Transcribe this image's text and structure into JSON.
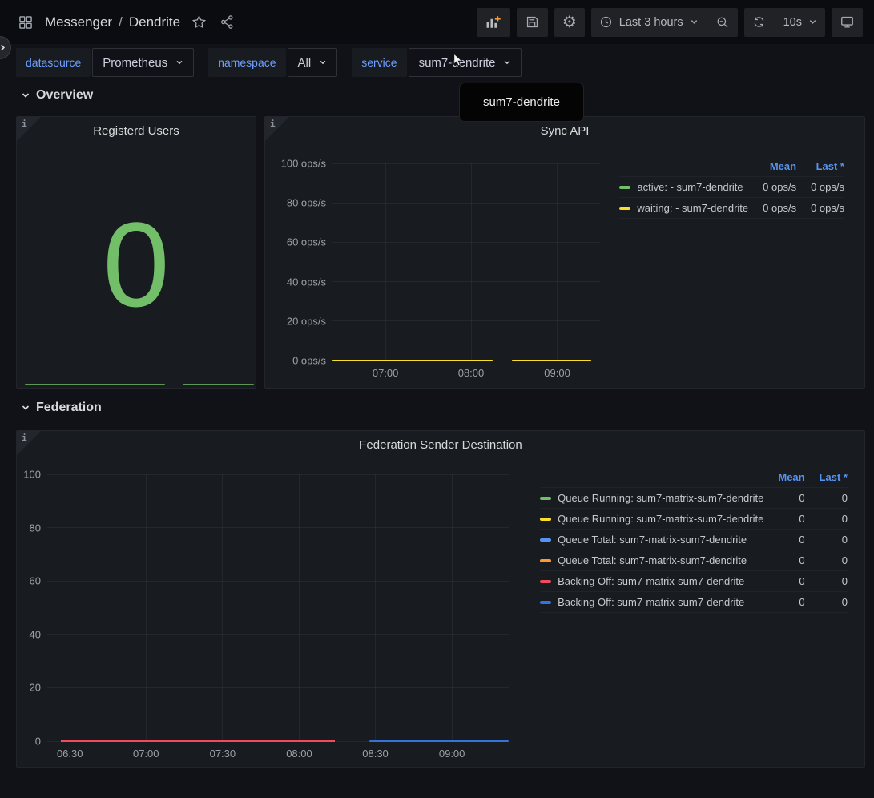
{
  "header": {
    "breadcrumb": {
      "app": "Messenger",
      "separator": "/",
      "page": "Dendrite"
    },
    "toolbar": {
      "time_range_label": "Last 3 hours",
      "refresh_interval": "10s"
    },
    "icons": [
      "dashboards-grid",
      "star",
      "share-alt",
      "add-panel-bar-chart-plus",
      "save-floppy",
      "settings-gear",
      "clock",
      "chevron-down",
      "zoom-out-magnifier-minus",
      "refresh-cycle",
      "kiosk-monitor"
    ]
  },
  "sidebar_handle": {
    "chevron": "expand-sidebar"
  },
  "variables": [
    {
      "label": "datasource",
      "value": "Prometheus"
    },
    {
      "label": "namespace",
      "value": "All"
    },
    {
      "label": "service",
      "value": "sum7-dendrite"
    }
  ],
  "tooltip": {
    "text": "sum7-dendrite"
  },
  "sections": [
    {
      "label": "Overview"
    },
    {
      "label": "Federation"
    }
  ],
  "chart_data": [
    {
      "type": "stat",
      "title": "Registerd Users",
      "value": 0,
      "display_value": "0",
      "color": "#73BF69",
      "sparkline": {
        "value": 0,
        "color": "#73BF69",
        "segments": [
          [
            0.033,
            0.62
          ],
          [
            0.693,
            0.993
          ]
        ]
      }
    },
    {
      "type": "line",
      "title": "Sync API",
      "xlabel": "",
      "ylabel": "",
      "unit": "ops/s",
      "ylim": [
        0,
        100
      ],
      "grid": true,
      "legend_position": "right-table",
      "y_ticks": [
        {
          "value": 100,
          "label": "100 ops/s"
        },
        {
          "value": 80,
          "label": "80 ops/s"
        },
        {
          "value": 60,
          "label": "60 ops/s"
        },
        {
          "value": 40,
          "label": "40 ops/s"
        },
        {
          "value": 20,
          "label": "20 ops/s"
        },
        {
          "value": 0,
          "label": "0 ops/s"
        }
      ],
      "x_ticks": [
        {
          "label": "07:00",
          "pos": 0.198
        },
        {
          "label": "08:00",
          "pos": 0.518
        },
        {
          "label": "09:00",
          "pos": 0.84
        }
      ],
      "series": [
        {
          "name": "active: - sum7-dendrite",
          "color": "#73BF69",
          "value": 0,
          "segments": [
            [
              0.0,
              0.599
            ],
            [
              0.67,
              0.967
            ]
          ]
        },
        {
          "name": "waiting: - sum7-dendrite",
          "color": "#FADE2A",
          "value": 0,
          "segments": [
            [
              0.0,
              0.599
            ],
            [
              0.67,
              0.967
            ]
          ]
        }
      ],
      "legend": {
        "columns": [
          "Mean",
          "Last *"
        ],
        "rows": [
          {
            "name": "active: - sum7-dendrite",
            "color": "#73BF69",
            "mean": "0 ops/s",
            "last": "0 ops/s"
          },
          {
            "name": "waiting: - sum7-dendrite",
            "color": "#FADE2A",
            "mean": "0 ops/s",
            "last": "0 ops/s"
          }
        ]
      }
    },
    {
      "type": "line",
      "title": "Federation Sender Destination",
      "xlabel": "",
      "ylabel": "",
      "unit": "",
      "ylim": [
        0,
        100
      ],
      "grid": true,
      "legend_position": "right-table",
      "y_ticks": [
        {
          "value": 100,
          "label": "100"
        },
        {
          "value": 80,
          "label": "80"
        },
        {
          "value": 60,
          "label": "60"
        },
        {
          "value": 40,
          "label": "40"
        },
        {
          "value": 20,
          "label": "20"
        },
        {
          "value": 0,
          "label": "0"
        }
      ],
      "x_ticks": [
        {
          "label": "06:30",
          "pos": 0.049
        },
        {
          "label": "07:00",
          "pos": 0.214
        },
        {
          "label": "07:30",
          "pos": 0.38
        },
        {
          "label": "08:00",
          "pos": 0.546
        },
        {
          "label": "08:30",
          "pos": 0.711
        },
        {
          "label": "09:00",
          "pos": 0.877
        }
      ],
      "series": [
        {
          "name": "Queue Running: sum7-matrix-sum7-dendrite",
          "color": "#73BF69",
          "value": 0,
          "segments": [
            [
              0.03,
              0.623
            ]
          ]
        },
        {
          "name": "Queue Running: sum7-matrix-sum7-dendrite",
          "color": "#FADE2A",
          "value": 0,
          "segments": [
            [
              0.03,
              0.623
            ]
          ]
        },
        {
          "name": "Queue Total: sum7-matrix-sum7-dendrite",
          "color": "#5794F2",
          "value": 0,
          "segments": [
            [
              0.03,
              0.623
            ]
          ]
        },
        {
          "name": "Queue Total: sum7-matrix-sum7-dendrite",
          "color": "#FF9830",
          "value": 0,
          "segments": [
            [
              0.03,
              0.623
            ]
          ]
        },
        {
          "name": "Backing Off: sum7-matrix-sum7-dendrite",
          "color": "#F2495C",
          "value": 0,
          "segments": [
            [
              0.03,
              0.623
            ]
          ]
        },
        {
          "name": "Backing Off: sum7-matrix-sum7-dendrite",
          "color": "#3274D9",
          "value": 0,
          "segments": [
            [
              0.698,
              1.0
            ]
          ]
        }
      ],
      "legend": {
        "columns": [
          "Mean",
          "Last *"
        ],
        "rows": [
          {
            "name": "Queue Running: sum7-matrix-sum7-dendrite",
            "color": "#73BF69",
            "mean": "0",
            "last": "0"
          },
          {
            "name": "Queue Running: sum7-matrix-sum7-dendrite",
            "color": "#FADE2A",
            "mean": "0",
            "last": "0"
          },
          {
            "name": "Queue Total: sum7-matrix-sum7-dendrite",
            "color": "#5794F2",
            "mean": "0",
            "last": "0"
          },
          {
            "name": "Queue Total: sum7-matrix-sum7-dendrite",
            "color": "#FF9830",
            "mean": "0",
            "last": "0"
          },
          {
            "name": "Backing Off: sum7-matrix-sum7-dendrite",
            "color": "#F2495C",
            "mean": "0",
            "last": "0"
          },
          {
            "name": "Backing Off: sum7-matrix-sum7-dendrite",
            "color": "#3274D9",
            "mean": "0",
            "last": "0"
          }
        ]
      }
    }
  ],
  "colors": {
    "page_bg": "#111217",
    "panel_bg": "#181b1f",
    "accent_link_blue": "#5794F2",
    "variable_label_blue": "#6e9fff",
    "stat_green": "#73BF69",
    "series_yellow": "#FADE2A",
    "series_light_blue": "#5794F2",
    "series_orange": "#FF9830",
    "series_red": "#F2495C",
    "series_dark_blue": "#3274D9",
    "add_plus_orange": "#FF9830"
  }
}
